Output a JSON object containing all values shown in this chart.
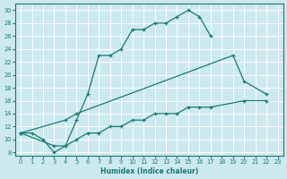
{
  "xlabel": "Humidex (Indice chaleur)",
  "background_color": "#cce9f0",
  "grid_color": "#ffffff",
  "line_color": "#1a7a6e",
  "xlim": [
    -0.5,
    23.5
  ],
  "ylim": [
    7.5,
    31
  ],
  "xticks": [
    0,
    1,
    2,
    3,
    4,
    5,
    6,
    7,
    8,
    9,
    10,
    11,
    12,
    13,
    14,
    15,
    16,
    17,
    18,
    19,
    20,
    21,
    22,
    23
  ],
  "yticks": [
    8,
    10,
    12,
    14,
    16,
    18,
    20,
    22,
    24,
    26,
    28,
    30
  ],
  "curve1_x": [
    0,
    1,
    2,
    3,
    4,
    5,
    6,
    7,
    8,
    9,
    10,
    11,
    12,
    13,
    14,
    15,
    16,
    17
  ],
  "curve1_y": [
    11,
    11,
    10,
    8,
    9,
    13,
    17,
    23,
    23,
    24,
    27,
    27,
    28,
    28,
    29,
    30,
    29,
    26
  ],
  "curve2_x": [
    0,
    4,
    5,
    19,
    20,
    22
  ],
  "curve2_y": [
    11,
    13,
    14,
    23,
    19,
    17
  ],
  "curve3_x": [
    0,
    3,
    4,
    5,
    6,
    7,
    8,
    9,
    10,
    11,
    12,
    13,
    14,
    15,
    16,
    17,
    20,
    22
  ],
  "curve3_y": [
    11,
    9,
    9,
    10,
    11,
    11,
    12,
    12,
    13,
    13,
    14,
    14,
    14,
    15,
    15,
    15,
    16,
    16
  ]
}
